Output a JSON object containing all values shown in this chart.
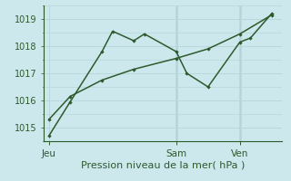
{
  "xlabel": "Pression niveau de la mer( hPa )",
  "background_color": "#cce8ec",
  "grid_color": "#b8d8dc",
  "line_color": "#2d5a2d",
  "vline_color": "#666666",
  "ylim": [
    1014.5,
    1019.5
  ],
  "yticks": [
    1015,
    1016,
    1017,
    1018,
    1019
  ],
  "day_labels": [
    "Jeu",
    "Sam",
    "Ven"
  ],
  "day_positions": [
    0,
    12,
    18
  ],
  "line1_x": [
    0,
    2,
    5,
    6,
    8,
    9,
    12,
    13,
    15,
    18,
    19,
    21
  ],
  "line1_y": [
    1014.7,
    1015.95,
    1017.8,
    1018.55,
    1018.2,
    1018.45,
    1017.8,
    1017.0,
    1016.5,
    1018.15,
    1018.3,
    1019.2
  ],
  "line2_x": [
    0,
    2,
    5,
    8,
    12,
    15,
    18,
    21
  ],
  "line2_y": [
    1015.3,
    1016.15,
    1016.75,
    1017.15,
    1017.55,
    1017.9,
    1018.45,
    1019.15
  ],
  "vline_positions": [
    12,
    18
  ],
  "xlim": [
    -0.5,
    22
  ],
  "xlabel_fontsize": 8,
  "ylabel_fontsize": 7,
  "xlabel_color": "#2d5a2d",
  "ylabel_color": "#2d5a2d",
  "tick_color": "#2d5a2d",
  "spine_color": "#2d5a2d"
}
